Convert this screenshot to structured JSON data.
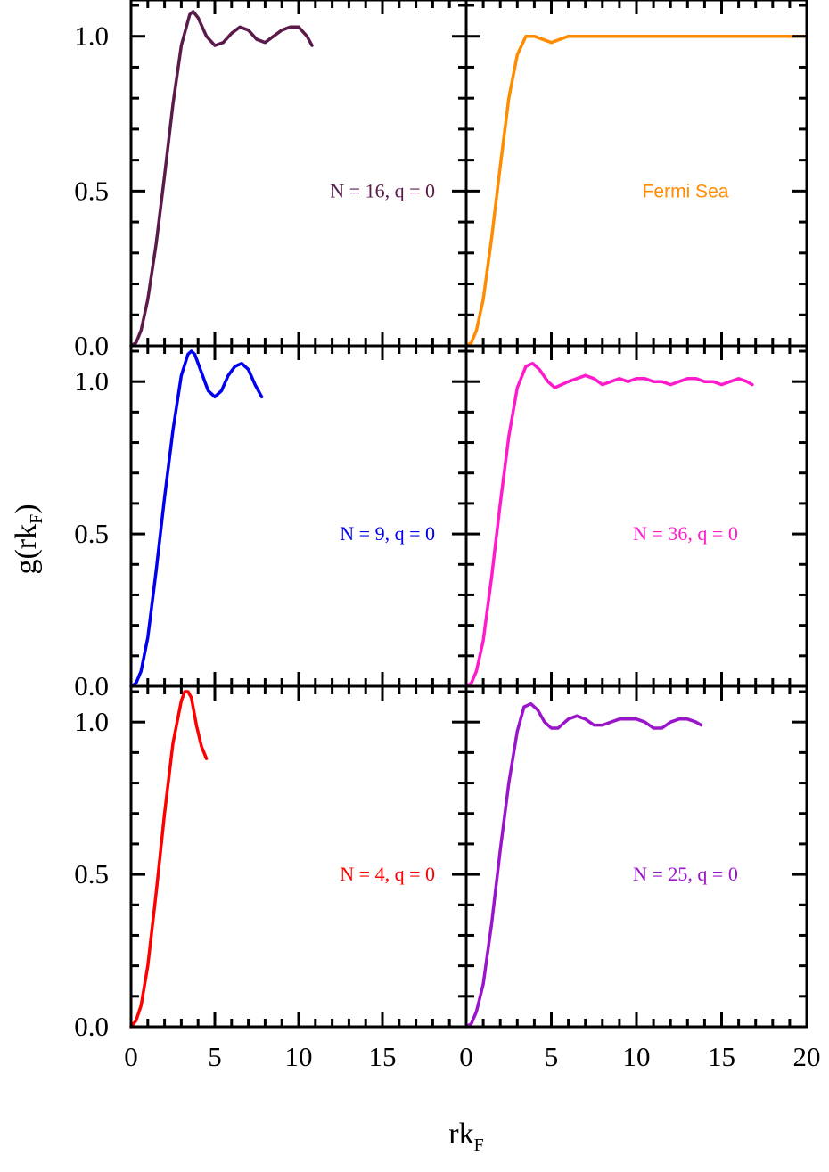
{
  "chart_data": {
    "type": "line",
    "layout": "3 rows x 2 columns, shared axes",
    "ylabel": "g(rk",
    "ylabel_sub": "F",
    "ylabel_close": ")",
    "xlabel": "rk",
    "xlabel_sub": "F",
    "xlim": [
      0,
      20
    ],
    "ylim": [
      0,
      1.1
    ],
    "xticks": [
      "0",
      "5",
      "10",
      "15",
      "0",
      "5",
      "10",
      "15",
      "20"
    ],
    "yticks": [
      "0.0",
      "0.5",
      "1.0"
    ],
    "grid": false,
    "panels": [
      {
        "row": 0,
        "col": 0,
        "label": "N = 16, q = 0",
        "color": "#5a1a4a",
        "series": [
          {
            "x": [
              0,
              0.3,
              0.6,
              1.0,
              1.5,
              2.0,
              2.5,
              3.0,
              3.5,
              3.7,
              4.0,
              4.5,
              5.0,
              5.5,
              6.0,
              6.5,
              7.0,
              7.5,
              8.0,
              8.5,
              9.0,
              9.5,
              10.0,
              10.5,
              10.8
            ],
            "y": [
              0.0,
              0.01,
              0.05,
              0.15,
              0.33,
              0.55,
              0.78,
              0.97,
              1.07,
              1.08,
              1.06,
              1.0,
              0.97,
              0.98,
              1.01,
              1.03,
              1.02,
              0.99,
              0.98,
              1.0,
              1.02,
              1.03,
              1.03,
              1.0,
              0.97
            ]
          }
        ]
      },
      {
        "row": 0,
        "col": 1,
        "label": "Fermi Sea",
        "label_font": "sans",
        "color": "#ff8c00",
        "series": [
          {
            "x": [
              0,
              0.3,
              0.6,
              1.0,
              1.5,
              2.0,
              2.5,
              3.0,
              3.5,
              4.0,
              4.5,
              5.0,
              5.5,
              6.0,
              7.0,
              8.0,
              9.0,
              10.0,
              12.0,
              14.0,
              16.0,
              18.0,
              20.0
            ],
            "y": [
              0.0,
              0.01,
              0.05,
              0.15,
              0.35,
              0.58,
              0.8,
              0.94,
              1.0,
              1.0,
              0.99,
              0.98,
              0.99,
              1.0,
              1.0,
              1.0,
              1.0,
              1.0,
              1.0,
              1.0,
              1.0,
              1.0,
              1.0
            ]
          }
        ]
      },
      {
        "row": 1,
        "col": 0,
        "label": "N = 9, q = 0",
        "color": "#0000ee",
        "series": [
          {
            "x": [
              0,
              0.3,
              0.6,
              1.0,
              1.5,
              2.0,
              2.5,
              3.0,
              3.4,
              3.6,
              3.8,
              4.2,
              4.6,
              5.0,
              5.4,
              5.8,
              6.2,
              6.6,
              7.0,
              7.4,
              7.8
            ],
            "y": [
              0.0,
              0.01,
              0.05,
              0.16,
              0.38,
              0.62,
              0.84,
              1.02,
              1.09,
              1.1,
              1.09,
              1.03,
              0.97,
              0.95,
              0.97,
              1.02,
              1.05,
              1.06,
              1.04,
              0.99,
              0.95
            ]
          }
        ]
      },
      {
        "row": 1,
        "col": 1,
        "label": "N = 36, q = 0",
        "color": "#ff1acb",
        "series": [
          {
            "x": [
              0,
              0.3,
              0.6,
              1.0,
              1.5,
              2.0,
              2.5,
              3.0,
              3.5,
              3.9,
              4.3,
              4.8,
              5.2,
              5.6,
              6.0,
              6.5,
              7.0,
              7.5,
              8.0,
              8.5,
              9.0,
              9.5,
              10.0,
              10.5,
              11.0,
              11.5,
              12.0,
              12.5,
              13.0,
              13.5,
              14.0,
              14.5,
              15.0,
              15.5,
              16.0,
              16.5,
              16.8
            ],
            "y": [
              0.0,
              0.01,
              0.05,
              0.15,
              0.36,
              0.6,
              0.82,
              0.98,
              1.05,
              1.06,
              1.04,
              1.0,
              0.98,
              0.99,
              1.0,
              1.01,
              1.02,
              1.01,
              0.99,
              1.0,
              1.01,
              1.0,
              1.01,
              1.01,
              1.0,
              1.0,
              0.99,
              1.0,
              1.01,
              1.01,
              1.0,
              1.0,
              0.99,
              1.0,
              1.01,
              1.0,
              0.99
            ]
          }
        ]
      },
      {
        "row": 2,
        "col": 0,
        "label": "N = 4, q = 0",
        "color": "#ff0000",
        "series": [
          {
            "x": [
              0,
              0.3,
              0.6,
              1.0,
              1.5,
              2.0,
              2.5,
              3.0,
              3.2,
              3.4,
              3.6,
              3.9,
              4.2,
              4.5
            ],
            "y": [
              0.0,
              0.02,
              0.07,
              0.2,
              0.44,
              0.7,
              0.93,
              1.07,
              1.1,
              1.1,
              1.08,
              0.99,
              0.92,
              0.88
            ]
          }
        ]
      },
      {
        "row": 2,
        "col": 1,
        "label": "N = 25, q = 0",
        "color": "#9a14cc",
        "series": [
          {
            "x": [
              0,
              0.3,
              0.6,
              1.0,
              1.5,
              2.0,
              2.5,
              3.0,
              3.4,
              3.8,
              4.2,
              4.6,
              5.0,
              5.4,
              6.0,
              6.5,
              7.0,
              7.5,
              8.0,
              8.5,
              9.0,
              9.5,
              10.0,
              10.5,
              11.0,
              11.5,
              12.0,
              12.5,
              13.0,
              13.5,
              13.8
            ],
            "y": [
              0.0,
              0.01,
              0.05,
              0.14,
              0.34,
              0.58,
              0.8,
              0.97,
              1.05,
              1.06,
              1.04,
              1.0,
              0.98,
              0.98,
              1.01,
              1.02,
              1.01,
              0.99,
              0.99,
              1.0,
              1.01,
              1.01,
              1.01,
              1.0,
              0.98,
              0.98,
              1.0,
              1.01,
              1.01,
              1.0,
              0.99
            ]
          }
        ]
      }
    ]
  }
}
